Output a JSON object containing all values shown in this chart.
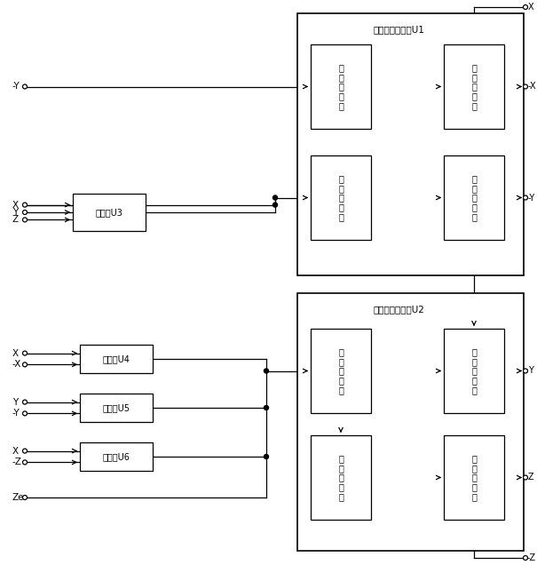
{
  "bg_color": "#ffffff",
  "line_color": "#000000",
  "u1_label": "集成运算放大器U1",
  "u2_label": "集成运算放大器U2",
  "u3_label": "乘法器U3",
  "u4_label": "乘法器U4",
  "u5_label": "乘法器U5",
  "u6_label": "乘法器U6",
  "int1_label": "第\n一\n积\n分\n器",
  "inv1_label": "第\n一\n反\n向\n器",
  "add1_label": "第\n一\n加\n法\n器",
  "int2_label": "第\n二\n积\n分\n器",
  "add2_label": "第\n二\n加\n法\n器",
  "inv2_label": "第\n二\n反\n向\n器",
  "int3_label": "第\n三\n积\n分\n器",
  "inv3_label": "第\n三\n反\n向\n器",
  "figw": 6.05,
  "figh": 6.36,
  "dpi": 100
}
